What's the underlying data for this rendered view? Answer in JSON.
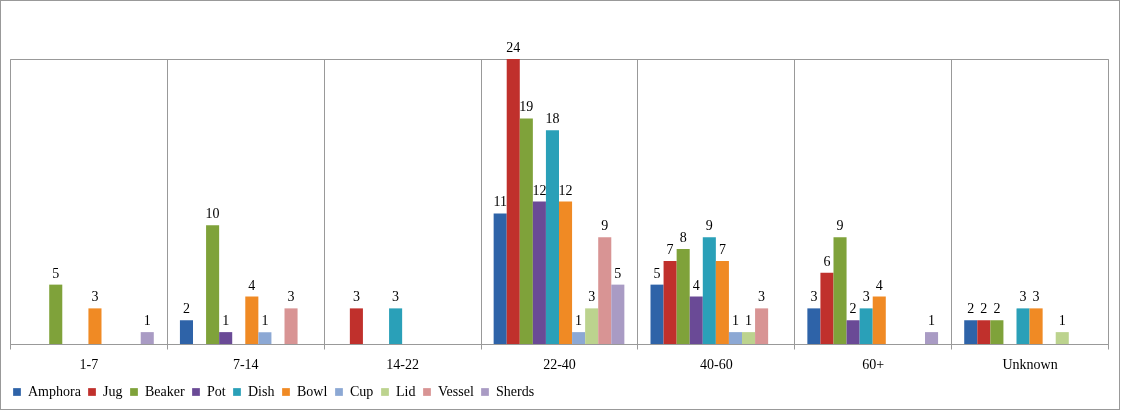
{
  "chart_data": {
    "type": "bar",
    "data_labels": true,
    "grid": "x",
    "legend": "bottom",
    "categories": [
      "1-7",
      "7-14",
      "14-22",
      "22-40",
      "40-60",
      "60+",
      "Unknown"
    ],
    "series": [
      {
        "name": "Amphora",
        "color": "#2e63a8",
        "values": [
          null,
          2,
          null,
          11,
          5,
          3,
          2
        ]
      },
      {
        "name": "Jug",
        "color": "#c0302c",
        "values": [
          null,
          null,
          3,
          24,
          7,
          6,
          2
        ]
      },
      {
        "name": "Beaker",
        "color": "#7fa23a",
        "values": [
          5,
          10,
          null,
          19,
          8,
          9,
          2
        ]
      },
      {
        "name": "Pot",
        "color": "#6a4a96",
        "values": [
          null,
          1,
          null,
          12,
          4,
          2,
          null
        ]
      },
      {
        "name": "Dish",
        "color": "#2aa0b8",
        "values": [
          null,
          null,
          3,
          18,
          9,
          3,
          3
        ]
      },
      {
        "name": "Bowl",
        "color": "#f08a24",
        "values": [
          3,
          4,
          null,
          12,
          7,
          4,
          3
        ]
      },
      {
        "name": "Cup",
        "color": "#8ca8d4",
        "values": [
          null,
          1,
          null,
          1,
          1,
          null,
          null
        ]
      },
      {
        "name": "Lid",
        "color": "#bcd38e",
        "values": [
          null,
          null,
          null,
          3,
          1,
          null,
          1
        ]
      },
      {
        "name": "Vessel",
        "color": "#d89494",
        "values": [
          null,
          3,
          null,
          9,
          3,
          null,
          null
        ]
      },
      {
        "name": "Sherds",
        "color": "#a99bc4",
        "values": [
          1,
          null,
          null,
          5,
          null,
          1,
          null
        ]
      }
    ]
  }
}
